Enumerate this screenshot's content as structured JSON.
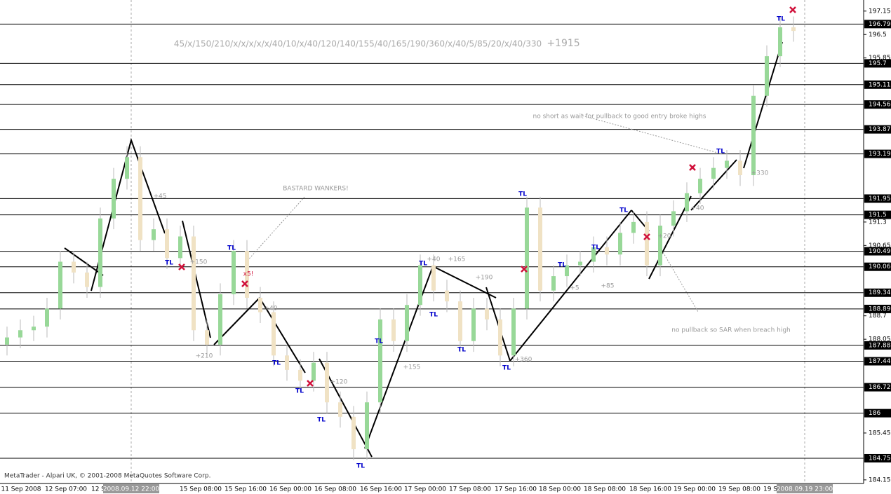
{
  "chart_data": {
    "type": "candlestick",
    "title": "45/x/150/210/x/x/x/x/x/40/10/x/40/120/140/155/40/165/190/360/x/40/5/85/20/x/40/330",
    "total": "+1915",
    "annotations": [
      "BASTARD WANKERS!",
      "no short as wait for pullback to good entry broke highs",
      "no pullback so SAR when breach high",
      "MetaTrader - Alpari UK, © 2001-2008 MetaQuotes Software Corp.",
      "x5!"
    ],
    "trade_labels": [
      "+45",
      "+150",
      "+40",
      "+210",
      "+120",
      "+155",
      "+40",
      "+165",
      "+190",
      "+360",
      "+5",
      "+85",
      "+20",
      "+40",
      "+330"
    ],
    "markers": [
      "TL",
      "TL",
      "TL",
      "TL",
      "TL",
      "TL",
      "TL",
      "TL",
      "TL",
      "TL",
      "TL",
      "TL",
      "TL",
      "TL",
      "TL",
      "TL",
      "TL"
    ],
    "x_labels": [
      "11 Sep 2008",
      "12 Sep 07:00",
      "12 S",
      "15 Sep 08:00",
      "15 Sep 16:00",
      "16 Sep 00:00",
      "16 Sep 08:00",
      "16 Sep 16:00",
      "17 Sep 00:00",
      "17 Sep 08:00",
      "17 Sep 16:00",
      "18 Sep 00:00",
      "18 Sep 08:00",
      "18 Sep 16:00",
      "19 Sep 00:00",
      "19 Sep 08:00",
      "19 S"
    ],
    "crosshair_labels": [
      "2008.09.12 22:00",
      "2008.09.19 23:00"
    ],
    "ylim": [
      184.05,
      197.36
    ],
    "yticks": [
      197.15,
      196.5,
      195.85,
      191.3,
      190.65,
      188.7,
      188.05,
      185.45,
      184.15
    ],
    "levels": [
      196.79,
      195.7,
      195.11,
      194.56,
      193.87,
      193.19,
      191.95,
      191.5,
      190.49,
      190.06,
      189.34,
      188.89,
      187.88,
      187.44,
      186.72,
      186.0,
      184.75
    ],
    "up_color": "#98d898",
    "down_color": "#f0e2c4",
    "open": [
      187.9,
      188.1,
      188.3,
      188.4,
      188.9,
      190.2,
      189.9,
      189.5,
      191.4,
      192.5,
      193.1,
      190.8,
      191.1,
      190.3,
      190.9,
      188.3,
      187.9,
      189.3,
      190.5,
      189.2,
      188.8,
      187.6,
      187.2,
      186.9,
      187.4,
      186.3,
      185.9,
      185.0,
      186.3,
      188.6,
      188.0,
      189.0,
      190.1,
      189.4,
      189.1,
      188.0,
      188.9,
      188.6,
      187.6,
      188.9,
      191.7,
      189.4,
      189.8,
      190.1,
      190.2,
      190.6,
      190.4,
      191.0,
      191.3,
      190.1,
      191.2,
      191.6,
      192.1,
      192.5,
      192.8,
      193.0,
      192.6,
      194.8,
      195.9,
      196.7
    ],
    "high": [
      188.4,
      188.6,
      188.7,
      189.2,
      190.5,
      190.5,
      190.2,
      191.7,
      192.8,
      193.4,
      193.4,
      191.4,
      191.4,
      191.2,
      191.2,
      188.6,
      189.6,
      190.8,
      190.8,
      189.5,
      189.1,
      187.9,
      187.5,
      187.7,
      187.7,
      186.6,
      186.2,
      186.6,
      188.9,
      188.9,
      189.3,
      190.4,
      190.4,
      189.7,
      189.4,
      189.2,
      189.2,
      188.9,
      189.2,
      192.0,
      192.0,
      190.1,
      190.4,
      190.5,
      190.9,
      190.9,
      191.3,
      191.6,
      191.6,
      191.5,
      191.9,
      192.4,
      192.8,
      193.1,
      193.3,
      193.3,
      195.1,
      196.2,
      197.0,
      197.0
    ],
    "low": [
      187.6,
      187.8,
      188.0,
      188.1,
      188.6,
      189.6,
      189.2,
      189.2,
      191.1,
      192.2,
      190.5,
      190.5,
      190.0,
      190.0,
      188.0,
      187.6,
      187.6,
      189.0,
      188.9,
      188.5,
      187.3,
      186.9,
      186.6,
      186.6,
      186.0,
      185.6,
      184.7,
      184.7,
      186.0,
      187.7,
      187.7,
      188.7,
      189.1,
      188.8,
      187.7,
      187.7,
      188.3,
      187.3,
      187.3,
      188.6,
      189.1,
      189.1,
      189.5,
      189.8,
      189.9,
      190.1,
      190.1,
      190.7,
      189.8,
      189.8,
      190.9,
      191.3,
      191.8,
      192.2,
      192.5,
      192.3,
      192.3,
      194.5,
      195.6,
      196.3
    ],
    "close": [
      188.1,
      188.3,
      188.4,
      188.9,
      190.2,
      189.9,
      189.5,
      191.4,
      192.5,
      193.1,
      190.8,
      191.1,
      190.3,
      190.9,
      188.3,
      187.9,
      189.3,
      190.5,
      189.2,
      188.8,
      187.6,
      187.2,
      186.9,
      187.4,
      186.3,
      185.9,
      185.0,
      186.3,
      188.6,
      188.0,
      189.0,
      190.1,
      189.4,
      189.1,
      188.0,
      188.9,
      188.6,
      187.6,
      188.9,
      191.7,
      189.4,
      189.8,
      190.1,
      190.2,
      190.6,
      190.4,
      191.0,
      191.3,
      190.1,
      191.2,
      191.6,
      192.1,
      192.5,
      192.8,
      193.0,
      192.6,
      194.8,
      195.9,
      196.7,
      196.6
    ]
  }
}
